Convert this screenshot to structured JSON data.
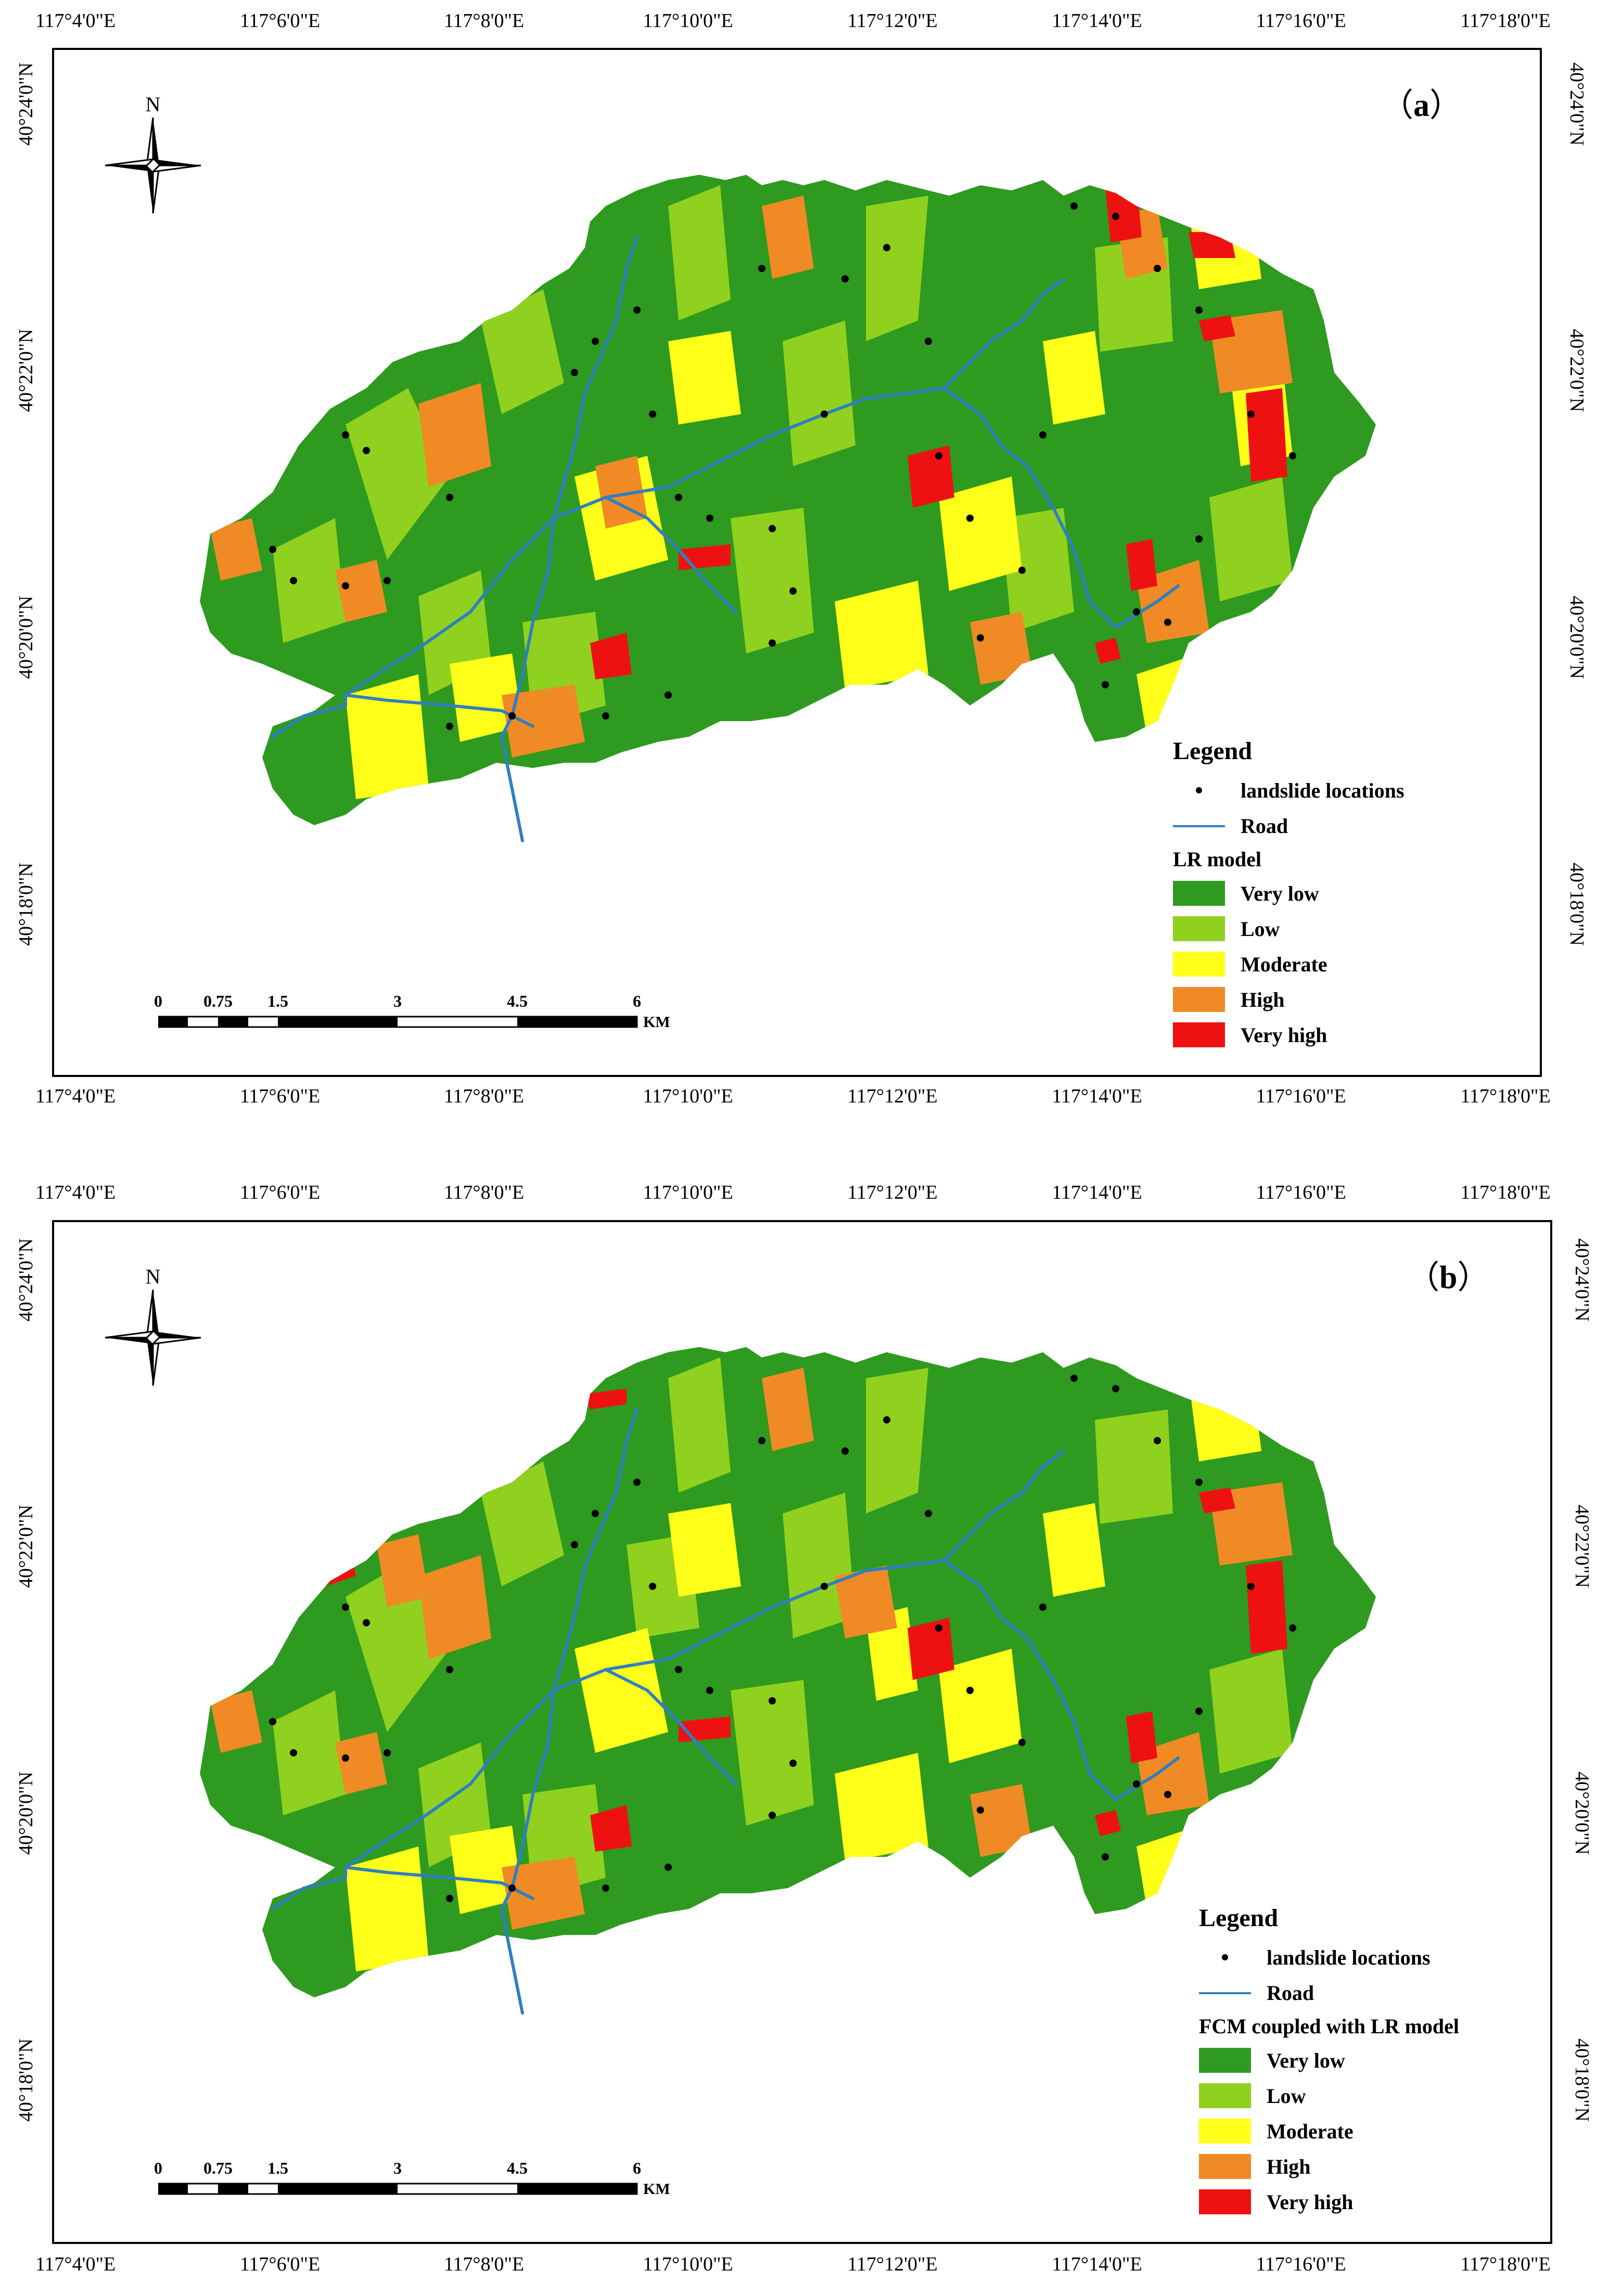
{
  "longitude_ticks": [
    "117°4'0\"E",
    "117°6'0\"E",
    "117°8'0\"E",
    "117°10'0\"E",
    "117°12'0\"E",
    "117°14'0\"E",
    "117°16'0\"E",
    "117°18'0\"E"
  ],
  "latitude_ticks": [
    "40°24'0\"N",
    "40°22'0\"N",
    "40°20'0\"N",
    "40°18'0\"N"
  ],
  "north_label": "N",
  "scalebar": {
    "labels": [
      "0",
      "0.75",
      "1.5",
      "3",
      "4.5",
      "6"
    ],
    "unit": "KM"
  },
  "classes": [
    {
      "label": "Very low",
      "color": "#2e9a1f"
    },
    {
      "label": "Low",
      "color": "#8fd11e"
    },
    {
      "label": "Moderate",
      "color": "#ffff1a"
    },
    {
      "label": "High",
      "color": "#f08a24"
    },
    {
      "label": "Very high",
      "color": "#ee1111"
    }
  ],
  "road_color": "#2f7fc0",
  "panels": [
    {
      "label_open": "（",
      "label_letter": "a",
      "label_close": "）",
      "legend": {
        "title": "Legend",
        "points_label": "landslide locations",
        "road_label": "Road",
        "model_label": "LR model"
      }
    },
    {
      "label_open": "（",
      "label_letter": "b",
      "label_close": "）",
      "legend": {
        "title": "Legend",
        "points_label": "landslide locations",
        "road_label": "Road",
        "model_label": "FCM coupled with LR model"
      }
    }
  ]
}
